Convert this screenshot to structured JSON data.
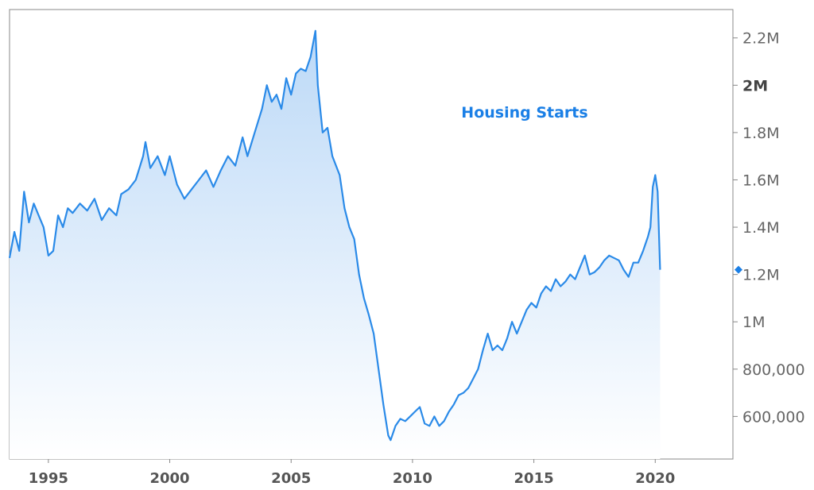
{
  "chart_data": {
    "type": "area",
    "title": "",
    "xlabel": "",
    "ylabel": "",
    "xlim": [
      1993.4,
      2023.2
    ],
    "ylim": [
      420000,
      2320000
    ],
    "grid": false,
    "legend": "none",
    "x_ticks": [
      {
        "value": 1995,
        "label": "1995"
      },
      {
        "value": 2000,
        "label": "2000"
      },
      {
        "value": 2005,
        "label": "2005"
      },
      {
        "value": 2010,
        "label": "2010"
      },
      {
        "value": 2015,
        "label": "2015"
      },
      {
        "value": 2020,
        "label": "2020"
      }
    ],
    "y_ticks": [
      {
        "value": 600000,
        "label": "600,000",
        "bold": false
      },
      {
        "value": 800000,
        "label": "800,000",
        "bold": false
      },
      {
        "value": 1000000,
        "label": "1M",
        "bold": false
      },
      {
        "value": 1200000,
        "label": "1.2M",
        "bold": false
      },
      {
        "value": 1400000,
        "label": "1.4M",
        "bold": false
      },
      {
        "value": 1600000,
        "label": "1.6M",
        "bold": false
      },
      {
        "value": 1800000,
        "label": "1.8M",
        "bold": false
      },
      {
        "value": 2000000,
        "label": "2M",
        "bold": true
      },
      {
        "value": 2200000,
        "label": "2.2M",
        "bold": false
      }
    ],
    "colors": {
      "line": "#2a8ae8",
      "fill_top": "#bcd9f7",
      "fill_bottom": "#ffffff",
      "label": "#1a7fe6",
      "axis": "#888888",
      "marker": "#1a7fe6"
    },
    "series": [
      {
        "name": "Housing Starts",
        "x": [
          1993.4,
          1993.6,
          1993.8,
          1994.0,
          1994.2,
          1994.4,
          1994.6,
          1994.8,
          1995.0,
          1995.2,
          1995.4,
          1995.6,
          1995.8,
          1996.0,
          1996.3,
          1996.6,
          1996.9,
          1997.2,
          1997.5,
          1997.8,
          1998.0,
          1998.3,
          1998.6,
          1998.9,
          1999.0,
          1999.2,
          1999.5,
          1999.8,
          2000.0,
          2000.3,
          2000.6,
          2000.9,
          2001.2,
          2001.5,
          2001.8,
          2002.1,
          2002.4,
          2002.7,
          2003.0,
          2003.2,
          2003.5,
          2003.8,
          2004.0,
          2004.2,
          2004.4,
          2004.6,
          2004.8,
          2005.0,
          2005.2,
          2005.4,
          2005.6,
          2005.8,
          2006.0,
          2006.1,
          2006.3,
          2006.5,
          2006.7,
          2007.0,
          2007.2,
          2007.4,
          2007.6,
          2007.8,
          2008.0,
          2008.2,
          2008.4,
          2008.6,
          2008.8,
          2009.0,
          2009.1,
          2009.3,
          2009.5,
          2009.7,
          2009.9,
          2010.1,
          2010.3,
          2010.5,
          2010.7,
          2010.9,
          2011.1,
          2011.3,
          2011.5,
          2011.7,
          2011.9,
          2012.1,
          2012.3,
          2012.5,
          2012.7,
          2012.9,
          2013.1,
          2013.3,
          2013.5,
          2013.7,
          2013.9,
          2014.1,
          2014.3,
          2014.5,
          2014.7,
          2014.9,
          2015.1,
          2015.3,
          2015.5,
          2015.7,
          2015.9,
          2016.1,
          2016.3,
          2016.5,
          2016.7,
          2016.9,
          2017.1,
          2017.3,
          2017.5,
          2017.7,
          2017.9,
          2018.1,
          2018.3,
          2018.5,
          2018.7,
          2018.9,
          2019.1,
          2019.3,
          2019.5,
          2019.7,
          2019.8,
          2019.9,
          2020.0,
          2020.1,
          2020.2
        ],
        "values": [
          1270000,
          1380000,
          1300000,
          1550000,
          1420000,
          1500000,
          1450000,
          1400000,
          1280000,
          1300000,
          1450000,
          1400000,
          1480000,
          1460000,
          1500000,
          1470000,
          1520000,
          1430000,
          1480000,
          1450000,
          1540000,
          1560000,
          1600000,
          1700000,
          1760000,
          1650000,
          1700000,
          1620000,
          1700000,
          1580000,
          1520000,
          1560000,
          1600000,
          1640000,
          1570000,
          1640000,
          1700000,
          1660000,
          1780000,
          1700000,
          1800000,
          1900000,
          2000000,
          1930000,
          1960000,
          1900000,
          2030000,
          1960000,
          2050000,
          2070000,
          2060000,
          2120000,
          2230000,
          2000000,
          1800000,
          1820000,
          1700000,
          1620000,
          1480000,
          1400000,
          1350000,
          1200000,
          1100000,
          1030000,
          950000,
          800000,
          650000,
          520000,
          500000,
          560000,
          590000,
          580000,
          600000,
          620000,
          640000,
          570000,
          560000,
          600000,
          560000,
          580000,
          620000,
          650000,
          690000,
          700000,
          720000,
          760000,
          800000,
          880000,
          950000,
          880000,
          900000,
          880000,
          930000,
          1000000,
          950000,
          1000000,
          1050000,
          1080000,
          1060000,
          1120000,
          1150000,
          1130000,
          1180000,
          1150000,
          1170000,
          1200000,
          1180000,
          1230000,
          1280000,
          1200000,
          1210000,
          1230000,
          1260000,
          1280000,
          1270000,
          1260000,
          1220000,
          1190000,
          1250000,
          1250000,
          1300000,
          1360000,
          1400000,
          1570000,
          1620000,
          1550000,
          1220000
        ]
      }
    ],
    "series_label": "Housing Starts"
  }
}
